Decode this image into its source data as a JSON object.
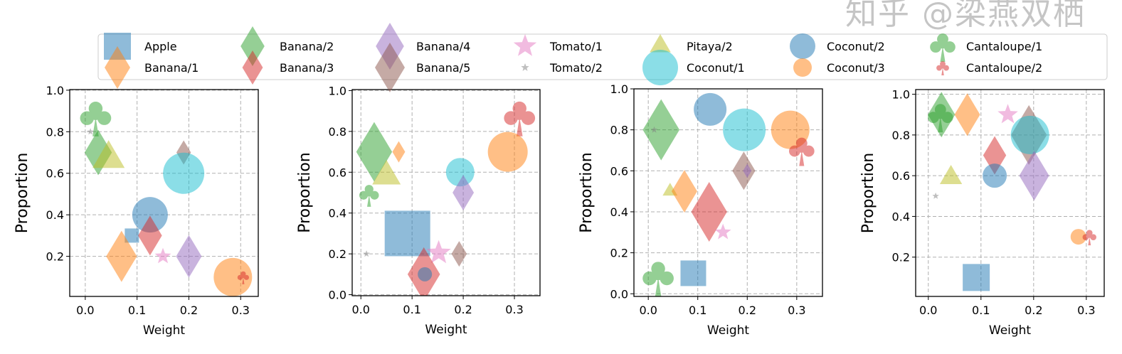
{
  "watermark": "知乎 @梁燕双栖",
  "chart_data": {
    "type": "scatter",
    "legend": {
      "placement": "top-center",
      "ncol": 7,
      "entries": [
        {
          "name": "Apple",
          "marker": "square",
          "color": "#1f77b4"
        },
        {
          "name": "Banana/1",
          "marker": "diamond",
          "color": "#ff7f0e"
        },
        {
          "name": "Banana/2",
          "marker": "diamond",
          "color": "#2ca02c"
        },
        {
          "name": "Banana/3",
          "marker": "diamond",
          "color": "#d62728"
        },
        {
          "name": "Banana/4",
          "marker": "diamond",
          "color": "#9467bd"
        },
        {
          "name": "Banana/5",
          "marker": "diamond",
          "color": "#8c564b"
        },
        {
          "name": "Tomato/1",
          "marker": "star",
          "color": "#e377c2"
        },
        {
          "name": "Tomato/2",
          "marker": "star",
          "color": "#7f7f7f"
        },
        {
          "name": "Pitaya/2",
          "marker": "triangle",
          "color": "#bcbd22"
        },
        {
          "name": "Coconut/1",
          "marker": "circle",
          "color": "#17becf"
        },
        {
          "name": "Coconut/2",
          "marker": "circle",
          "color": "#1f77b4"
        },
        {
          "name": "Coconut/3",
          "marker": "circle",
          "color": "#ff7f0e"
        },
        {
          "name": "Cantaloupe/1",
          "marker": "club",
          "color": "#2ca02c"
        },
        {
          "name": "Cantaloupe/2",
          "marker": "club",
          "color": "#d62728"
        }
      ]
    },
    "alpha": 0.5,
    "grid": true,
    "subplots": [
      {
        "xlabel": "Weight",
        "ylabel": "Proportion",
        "xlim": [
          -0.03,
          0.334
        ],
        "ylim": [
          0.007,
          1.003
        ],
        "xticks": [
          "0.0",
          "0.1",
          "0.2",
          "0.3"
        ],
        "yticks": [
          "0.2",
          "0.4",
          "0.6",
          "0.8",
          "1.0"
        ],
        "points": [
          {
            "series": "Cantaloupe/1",
            "x": 0.02,
            "y": 0.87,
            "size": 27
          },
          {
            "series": "Tomato/2",
            "x": 0.01,
            "y": 0.8,
            "size": 5
          },
          {
            "series": "Banana/2",
            "x": 0.025,
            "y": 0.7,
            "size": 32
          },
          {
            "series": "Pitaya/2",
            "x": 0.045,
            "y": 0.67,
            "size": 26
          },
          {
            "series": "Banana/5",
            "x": 0.19,
            "y": 0.7,
            "size": 17
          },
          {
            "series": "Coconut/1",
            "x": 0.19,
            "y": 0.6,
            "size": 29
          },
          {
            "series": "Coconut/2",
            "x": 0.125,
            "y": 0.4,
            "size": 25
          },
          {
            "series": "Apple",
            "x": 0.09,
            "y": 0.3,
            "size": 10
          },
          {
            "series": "Banana/3",
            "x": 0.125,
            "y": 0.3,
            "size": 28
          },
          {
            "series": "Banana/1",
            "x": 0.07,
            "y": 0.2,
            "size": 36
          },
          {
            "series": "Tomato/1",
            "x": 0.15,
            "y": 0.2,
            "size": 12
          },
          {
            "series": "Banana/4",
            "x": 0.2,
            "y": 0.2,
            "size": 30
          },
          {
            "series": "Coconut/3",
            "x": 0.285,
            "y": 0.1,
            "size": 27
          },
          {
            "series": "Cantaloupe/2",
            "x": 0.305,
            "y": 0.1,
            "size": 10
          }
        ]
      },
      {
        "xlabel": "Weight",
        "ylabel": "Proportion",
        "xlim": [
          -0.017,
          0.35
        ],
        "ylim": [
          -0.005,
          1.005
        ],
        "xticks": [
          "0.0",
          "0.1",
          "0.2",
          "0.3"
        ],
        "yticks": [
          "0.0",
          "0.2",
          "0.4",
          "0.6",
          "0.8",
          "1.0"
        ],
        "points": [
          {
            "series": "Cantaloupe/2",
            "x": 0.31,
            "y": 0.87,
            "size": 27
          },
          {
            "series": "Coconut/3",
            "x": 0.287,
            "y": 0.7,
            "size": 28
          },
          {
            "series": "Banana/2",
            "x": 0.026,
            "y": 0.7,
            "size": 42
          },
          {
            "series": "Banana/1",
            "x": 0.074,
            "y": 0.7,
            "size": 15
          },
          {
            "series": "Pitaya/2",
            "x": 0.05,
            "y": 0.58,
            "size": 23
          },
          {
            "series": "Cantaloupe/1",
            "x": 0.016,
            "y": 0.49,
            "size": 17
          },
          {
            "series": "Coconut/1",
            "x": 0.194,
            "y": 0.6,
            "size": 20
          },
          {
            "series": "Banana/4",
            "x": 0.2,
            "y": 0.5,
            "size": 25
          },
          {
            "series": "Apple",
            "x": 0.091,
            "y": 0.3,
            "size": 32
          },
          {
            "series": "Tomato/2",
            "x": 0.011,
            "y": 0.2,
            "size": 5
          },
          {
            "series": "Tomato/1",
            "x": 0.152,
            "y": 0.205,
            "size": 18
          },
          {
            "series": "Banana/5",
            "x": 0.192,
            "y": 0.2,
            "size": 18
          },
          {
            "series": "Banana/3",
            "x": 0.123,
            "y": 0.1,
            "size": 38
          },
          {
            "series": "Coconut/2",
            "x": 0.125,
            "y": 0.1,
            "size": 10
          }
        ]
      },
      {
        "xlabel": "Weight",
        "ylabel": "Proportion",
        "xlim": [
          -0.029,
          0.352
        ],
        "ylim": [
          -0.013,
          1.0
        ],
        "xticks": [
          "0.0",
          "0.1",
          "0.2",
          "0.3"
        ],
        "yticks": [
          "0.0",
          "0.2",
          "0.4",
          "0.6",
          "0.8",
          "1.0"
        ],
        "points": [
          {
            "series": "Banana/2",
            "x": 0.026,
            "y": 0.8,
            "size": 43
          },
          {
            "series": "Tomato/2",
            "x": 0.012,
            "y": 0.8,
            "size": 5
          },
          {
            "series": "Coconut/2",
            "x": 0.125,
            "y": 0.9,
            "size": 23
          },
          {
            "series": "Coconut/1",
            "x": 0.194,
            "y": 0.8,
            "size": 30
          },
          {
            "series": "Coconut/3",
            "x": 0.287,
            "y": 0.8,
            "size": 27
          },
          {
            "series": "Cantaloupe/2",
            "x": 0.31,
            "y": 0.7,
            "size": 22
          },
          {
            "series": "Banana/5",
            "x": 0.193,
            "y": 0.6,
            "size": 27
          },
          {
            "series": "Banana/4",
            "x": 0.2,
            "y": 0.6,
            "size": 10
          },
          {
            "series": "Pitaya/2",
            "x": 0.044,
            "y": 0.5,
            "size": 12
          },
          {
            "series": "Banana/1",
            "x": 0.073,
            "y": 0.5,
            "size": 30
          },
          {
            "series": "Banana/3",
            "x": 0.123,
            "y": 0.4,
            "size": 42
          },
          {
            "series": "Tomato/1",
            "x": 0.151,
            "y": 0.3,
            "size": 12
          },
          {
            "series": "Cantaloupe/1",
            "x": 0.02,
            "y": 0.08,
            "size": 27
          },
          {
            "series": "Apple",
            "x": 0.091,
            "y": 0.1,
            "size": 18
          }
        ]
      },
      {
        "xlabel": "Weight",
        "ylabel": "Proportion",
        "xlim": [
          -0.024,
          0.334
        ],
        "ylim": [
          0.007,
          1.023
        ],
        "xticks": [
          "0.0",
          "0.1",
          "0.2",
          "0.3"
        ],
        "yticks": [
          "0.2",
          "0.4",
          "0.6",
          "0.8",
          "1.0"
        ],
        "points": [
          {
            "series": "Banana/2",
            "x": 0.025,
            "y": 0.9,
            "size": 32
          },
          {
            "series": "Cantaloupe/1",
            "x": 0.023,
            "y": 0.89,
            "size": 22
          },
          {
            "series": "Banana/1",
            "x": 0.074,
            "y": 0.9,
            "size": 30
          },
          {
            "series": "Tomato/1",
            "x": 0.151,
            "y": 0.9,
            "size": 15
          },
          {
            "series": "Banana/5",
            "x": 0.191,
            "y": 0.8,
            "size": 42
          },
          {
            "series": "Coconut/1",
            "x": 0.193,
            "y": 0.8,
            "size": 27
          },
          {
            "series": "Banana/3",
            "x": 0.126,
            "y": 0.7,
            "size": 27
          },
          {
            "series": "Coconut/2",
            "x": 0.126,
            "y": 0.6,
            "size": 17
          },
          {
            "series": "Banana/4",
            "x": 0.201,
            "y": 0.6,
            "size": 35
          },
          {
            "series": "Pitaya/2",
            "x": 0.043,
            "y": 0.59,
            "size": 18
          },
          {
            "series": "Tomato/2",
            "x": 0.014,
            "y": 0.5,
            "size": 5
          },
          {
            "series": "Coconut/3",
            "x": 0.285,
            "y": 0.3,
            "size": 11
          },
          {
            "series": "Cantaloupe/2",
            "x": 0.306,
            "y": 0.3,
            "size": 12
          },
          {
            "series": "Apple",
            "x": 0.091,
            "y": 0.1,
            "size": 19
          }
        ]
      }
    ]
  }
}
